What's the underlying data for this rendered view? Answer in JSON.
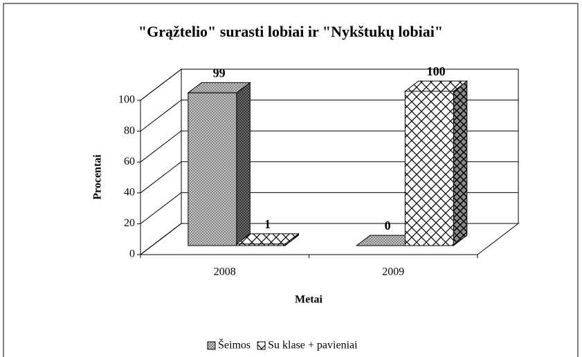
{
  "chart_data": {
    "type": "bar3d",
    "title": "\"Grąžtelio\" surasti lobiai ir \"Nykštukų lobiai\"",
    "y_label": "Procentai",
    "x_label": "Metai",
    "categories": [
      "2008",
      "2009"
    ],
    "series": [
      {
        "name": "Šeimos",
        "color": "#7f7f7f",
        "values": [
          99,
          0
        ]
      },
      {
        "name": "Su klase + pavieniai",
        "color": "#ffffff",
        "values": [
          1,
          100
        ]
      }
    ],
    "ylim": [
      0,
      100
    ],
    "yticks": [
      0,
      20,
      40,
      60,
      80,
      100
    ],
    "grid": true,
    "legend": "bottom"
  }
}
